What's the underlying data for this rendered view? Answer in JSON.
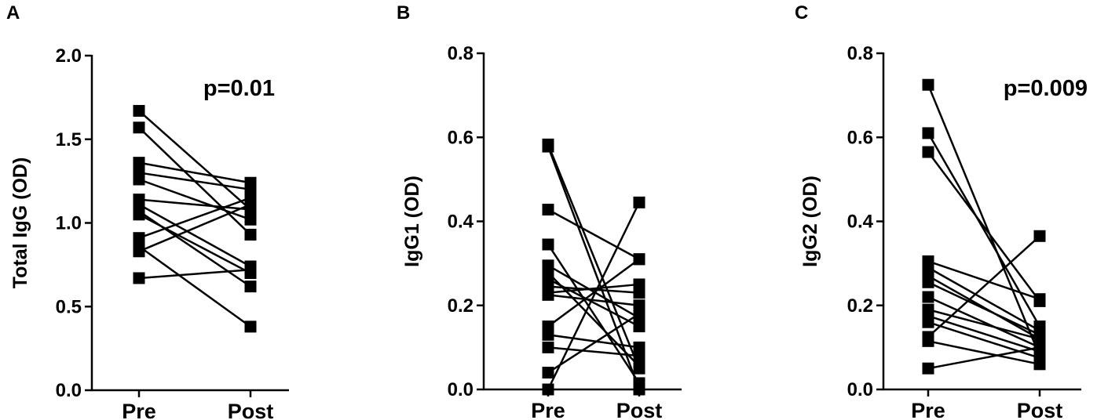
{
  "chart_data": [
    {
      "type": "scatter",
      "panel": "A",
      "title": "",
      "xlabel": "",
      "ylabel": "Total IgG (OD)",
      "categories": [
        "Pre",
        "Post"
      ],
      "ylim": [
        0,
        2.0
      ],
      "yticks": [
        "0.0",
        "0.5",
        "1.0",
        "1.5",
        "2.0"
      ],
      "annotation": "p=0.01",
      "pairs": [
        [
          1.67,
          1.08
        ],
        [
          1.57,
          0.93
        ],
        [
          1.36,
          1.24
        ],
        [
          1.3,
          1.2
        ],
        [
          1.26,
          1.02
        ],
        [
          1.14,
          1.08
        ],
        [
          1.11,
          0.74
        ],
        [
          1.07,
          0.62
        ],
        [
          1.05,
          0.7
        ],
        [
          0.91,
          1.15
        ],
        [
          0.86,
          0.38
        ],
        [
          0.83,
          1.11
        ],
        [
          0.67,
          0.72
        ]
      ]
    },
    {
      "type": "scatter",
      "panel": "B",
      "title": "",
      "xlabel": "",
      "ylabel": "IgG1 (OD)",
      "categories": [
        "Pre",
        "Post"
      ],
      "ylim": [
        0,
        0.8
      ],
      "yticks": [
        "0.0",
        "0.2",
        "0.4",
        "0.6",
        "0.8"
      ],
      "annotation": "",
      "pairs": [
        [
          0.583,
          0.05
        ],
        [
          0.578,
          0.0
        ],
        [
          0.428,
          0.31
        ],
        [
          0.345,
          0.015
        ],
        [
          0.295,
          0.17
        ],
        [
          0.278,
          0.055
        ],
        [
          0.263,
          0.15
        ],
        [
          0.245,
          0.23
        ],
        [
          0.23,
          0.25
        ],
        [
          0.225,
          0.2
        ],
        [
          0.15,
          0.31
        ],
        [
          0.13,
          0.1
        ],
        [
          0.1,
          0.08
        ],
        [
          0.04,
          0.18
        ],
        [
          0.0,
          0.445
        ]
      ]
    },
    {
      "type": "scatter",
      "panel": "C",
      "title": "",
      "xlabel": "",
      "ylabel": "IgG2 (OD)",
      "categories": [
        "Pre",
        "Post"
      ],
      "ylim": [
        0,
        0.8
      ],
      "yticks": [
        "0.0",
        "0.2",
        "0.4",
        "0.6",
        "0.8"
      ],
      "annotation": "p=0.009",
      "pairs": [
        [
          0.725,
          0.08
        ],
        [
          0.61,
          0.15
        ],
        [
          0.565,
          0.21
        ],
        [
          0.305,
          0.215
        ],
        [
          0.29,
          0.14
        ],
        [
          0.27,
          0.12
        ],
        [
          0.255,
          0.13
        ],
        [
          0.22,
          0.1
        ],
        [
          0.19,
          0.12
        ],
        [
          0.175,
          0.09
        ],
        [
          0.16,
          0.075
        ],
        [
          0.125,
          0.365
        ],
        [
          0.115,
          0.06
        ],
        [
          0.05,
          0.1
        ]
      ]
    }
  ]
}
